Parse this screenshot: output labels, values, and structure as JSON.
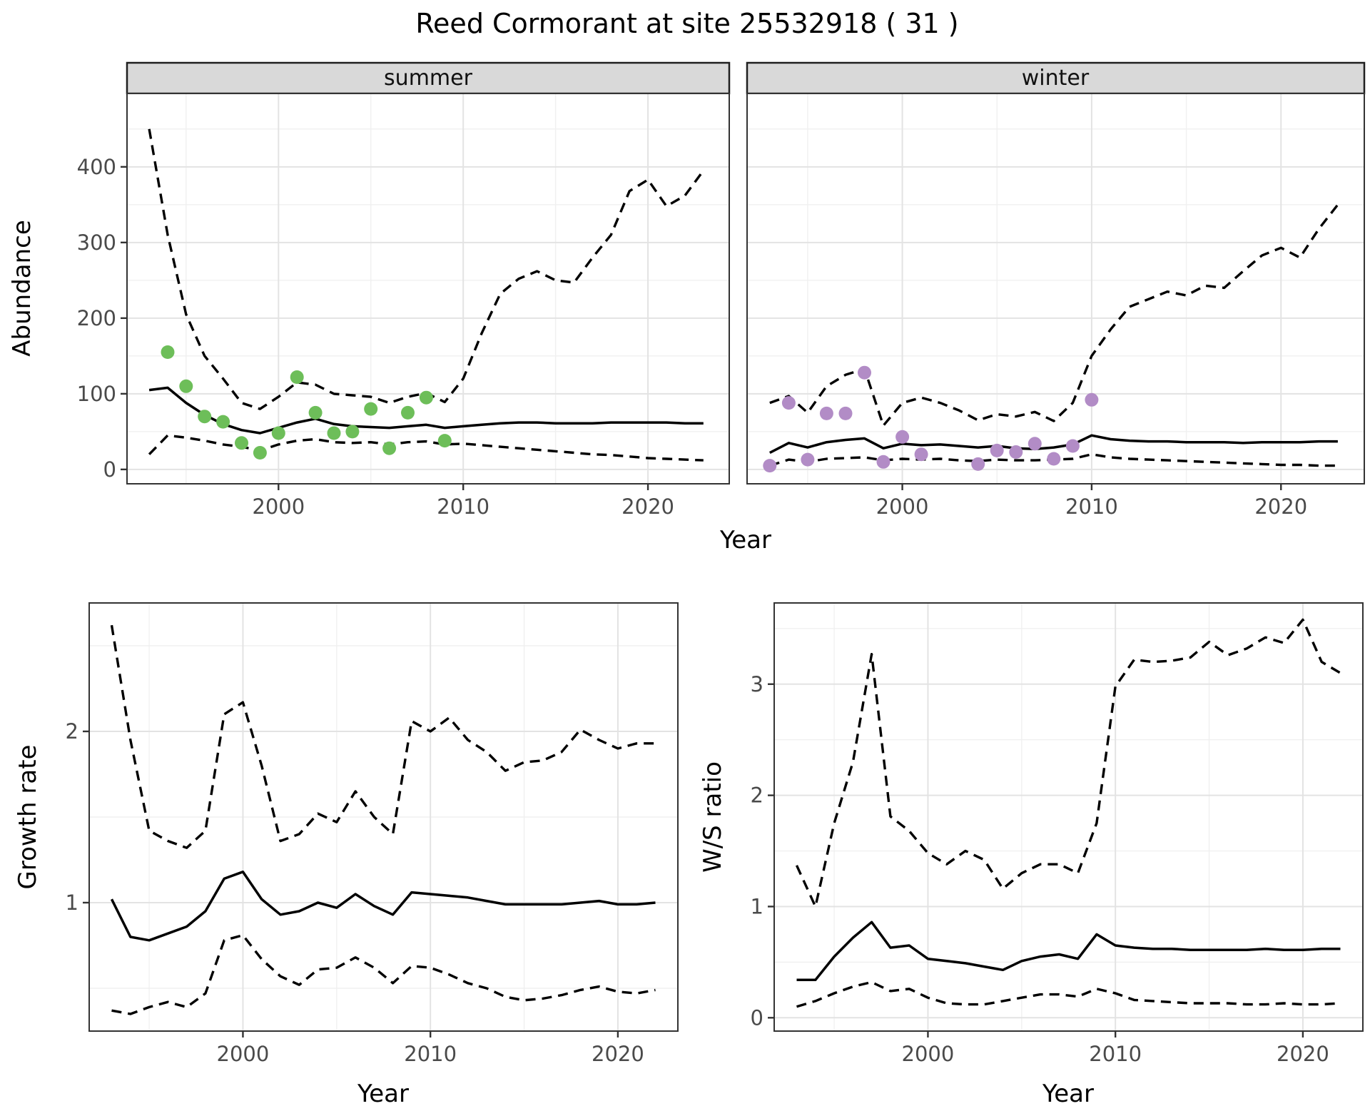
{
  "title": "Reed Cormorant at site 25532918 ( 31 )",
  "labels": {
    "top_xlabel": "Year"
  },
  "colors": {
    "summer_point": "#6dbe59",
    "winter_point": "#b28cc6",
    "line": "#000000",
    "strip_fill": "#d9d9d9",
    "grid_major": "#e3e3e3",
    "grid_minor": "#f0f0f0",
    "tick_text": "#4a4a4a",
    "panel_border": "#333333"
  },
  "chart_data": [
    {
      "type": "line",
      "facet": "summer",
      "xlabel": "Year",
      "ylabel": "Abundance",
      "xlim": [
        1991.8,
        2024.4
      ],
      "ylim": [
        -19,
        497
      ],
      "x_ticks": [
        2000,
        2010,
        2020
      ],
      "x_minor": [
        1995,
        2005,
        2015
      ],
      "y_ticks": [
        0,
        100,
        200,
        300,
        400
      ],
      "y_minor": [
        50,
        150,
        250,
        350,
        450
      ],
      "grid": true,
      "legend": "none",
      "years": [
        1993,
        1994,
        1995,
        1996,
        1997,
        1998,
        1999,
        2000,
        2001,
        2002,
        2003,
        2004,
        2005,
        2006,
        2007,
        2008,
        2009,
        2010,
        2011,
        2012,
        2013,
        2014,
        2015,
        2016,
        2017,
        2018,
        2019,
        2020,
        2021,
        2022,
        2023
      ],
      "series": [
        {
          "name": "median",
          "style": "solid",
          "values": [
            105,
            108,
            88,
            72,
            60,
            52,
            48,
            55,
            62,
            67,
            60,
            57,
            56,
            55,
            57,
            59,
            55,
            57,
            59,
            61,
            62,
            62,
            61,
            61,
            61,
            62,
            62,
            62,
            62,
            61,
            61
          ]
        },
        {
          "name": "upper_ci",
          "style": "dashed",
          "values": [
            450,
            310,
            205,
            150,
            120,
            88,
            80,
            96,
            115,
            112,
            100,
            98,
            96,
            88,
            96,
            101,
            89,
            120,
            180,
            232,
            252,
            262,
            250,
            247,
            280,
            310,
            368,
            383,
            348,
            362,
            395
          ]
        },
        {
          "name": "lower_ci",
          "style": "dashed",
          "values": [
            20,
            45,
            42,
            38,
            33,
            30,
            25,
            33,
            38,
            40,
            36,
            35,
            36,
            33,
            36,
            37,
            33,
            34,
            32,
            30,
            28,
            26,
            24,
            22,
            20,
            19,
            17,
            15,
            14,
            13,
            12
          ]
        }
      ],
      "observations": {
        "color_key": "summer_point",
        "points": [
          [
            1994,
            155
          ],
          [
            1995,
            110
          ],
          [
            1996,
            70
          ],
          [
            1997,
            63
          ],
          [
            1998,
            35
          ],
          [
            1999,
            22
          ],
          [
            2000,
            48
          ],
          [
            2001,
            122
          ],
          [
            2002,
            75
          ],
          [
            2003,
            48
          ],
          [
            2004,
            50
          ],
          [
            2005,
            80
          ],
          [
            2006,
            28
          ],
          [
            2007,
            75
          ],
          [
            2008,
            95
          ],
          [
            2009,
            38
          ]
        ]
      }
    },
    {
      "type": "line",
      "facet": "winter",
      "xlabel": "Year",
      "ylabel": "Abundance",
      "xlim": [
        1991.8,
        2024.4
      ],
      "ylim": [
        -19,
        497
      ],
      "x_ticks": [
        2000,
        2010,
        2020
      ],
      "x_minor": [
        1995,
        2005,
        2015
      ],
      "y_ticks": [
        0,
        100,
        200,
        300,
        400
      ],
      "y_minor": [
        50,
        150,
        250,
        350,
        450
      ],
      "grid": true,
      "legend": "none",
      "years": [
        1993,
        1994,
        1995,
        1996,
        1997,
        1998,
        1999,
        2000,
        2001,
        2002,
        2003,
        2004,
        2005,
        2006,
        2007,
        2008,
        2009,
        2010,
        2011,
        2012,
        2013,
        2014,
        2015,
        2016,
        2017,
        2018,
        2019,
        2020,
        2021,
        2022,
        2023
      ],
      "series": [
        {
          "name": "median",
          "style": "solid",
          "values": [
            22,
            35,
            29,
            36,
            39,
            41,
            28,
            34,
            32,
            33,
            31,
            29,
            31,
            28,
            27,
            29,
            33,
            45,
            40,
            38,
            37,
            37,
            36,
            36,
            36,
            35,
            36,
            36,
            36,
            37,
            37
          ]
        },
        {
          "name": "upper_ci",
          "style": "dashed",
          "values": [
            88,
            97,
            75,
            110,
            125,
            133,
            58,
            88,
            95,
            88,
            78,
            65,
            73,
            70,
            76,
            64,
            88,
            150,
            185,
            215,
            225,
            235,
            230,
            243,
            240,
            262,
            283,
            293,
            280,
            318,
            350
          ]
        },
        {
          "name": "lower_ci",
          "style": "dashed",
          "values": [
            5,
            13,
            10,
            14,
            15,
            16,
            12,
            14,
            13,
            14,
            12,
            11,
            13,
            12,
            12,
            13,
            14,
            20,
            16,
            14,
            13,
            12,
            11,
            10,
            9,
            8,
            7,
            6,
            6,
            5,
            5
          ]
        }
      ],
      "observations": {
        "color_key": "winter_point",
        "points": [
          [
            1993,
            5
          ],
          [
            1994,
            88
          ],
          [
            1995,
            13
          ],
          [
            1996,
            74
          ],
          [
            1997,
            74
          ],
          [
            1998,
            128
          ],
          [
            1999,
            10
          ],
          [
            2000,
            43
          ],
          [
            2001,
            20
          ],
          [
            2004,
            7
          ],
          [
            2005,
            25
          ],
          [
            2006,
            23
          ],
          [
            2007,
            34
          ],
          [
            2008,
            14
          ],
          [
            2009,
            31
          ],
          [
            2010,
            92
          ]
        ]
      }
    },
    {
      "type": "line",
      "facet": null,
      "xlabel": "Year",
      "ylabel": "Growth rate",
      "xlim": [
        1991.8,
        2023.2
      ],
      "ylim": [
        0.25,
        2.75
      ],
      "x_ticks": [
        2000,
        2010,
        2020
      ],
      "x_minor": [
        1995,
        2005,
        2015
      ],
      "y_ticks": [
        1,
        2
      ],
      "y_minor": [
        0.5,
        1.5,
        2.5
      ],
      "grid": true,
      "legend": "none",
      "years": [
        1993,
        1994,
        1995,
        1996,
        1997,
        1998,
        1999,
        2000,
        2001,
        2002,
        2003,
        2004,
        2005,
        2006,
        2007,
        2008,
        2009,
        2010,
        2011,
        2012,
        2013,
        2014,
        2015,
        2016,
        2017,
        2018,
        2019,
        2020,
        2021,
        2022
      ],
      "series": [
        {
          "name": "median",
          "style": "solid",
          "values": [
            1.02,
            0.8,
            0.78,
            0.82,
            0.86,
            0.95,
            1.14,
            1.18,
            1.02,
            0.93,
            0.95,
            1.0,
            0.97,
            1.05,
            0.98,
            0.93,
            1.06,
            1.05,
            1.04,
            1.03,
            1.01,
            0.99,
            0.99,
            0.99,
            0.99,
            1.0,
            1.01,
            0.99,
            0.99,
            1.0
          ]
        },
        {
          "name": "upper_ci",
          "style": "dashed",
          "values": [
            2.62,
            1.95,
            1.42,
            1.36,
            1.32,
            1.42,
            2.1,
            2.17,
            1.8,
            1.36,
            1.4,
            1.52,
            1.47,
            1.65,
            1.5,
            1.4,
            2.06,
            2.0,
            2.08,
            1.95,
            1.88,
            1.77,
            1.82,
            1.83,
            1.88,
            2.01,
            1.95,
            1.9,
            1.93,
            1.93
          ]
        },
        {
          "name": "lower_ci",
          "style": "dashed",
          "values": [
            0.37,
            0.35,
            0.39,
            0.42,
            0.39,
            0.47,
            0.78,
            0.81,
            0.67,
            0.57,
            0.52,
            0.61,
            0.62,
            0.68,
            0.62,
            0.53,
            0.63,
            0.62,
            0.58,
            0.53,
            0.5,
            0.45,
            0.43,
            0.44,
            0.46,
            0.49,
            0.51,
            0.48,
            0.47,
            0.49
          ]
        }
      ]
    },
    {
      "type": "line",
      "facet": null,
      "xlabel": "Year",
      "ylabel": "W/S ratio",
      "xlim": [
        1991.8,
        2023.2
      ],
      "ylim": [
        -0.12,
        3.73
      ],
      "x_ticks": [
        2000,
        2010,
        2020
      ],
      "x_minor": [
        1995,
        2005,
        2015
      ],
      "y_ticks": [
        0,
        1,
        2,
        3
      ],
      "y_minor": [
        0.5,
        1.5,
        2.5,
        3.5
      ],
      "grid": true,
      "legend": "none",
      "years": [
        1993,
        1994,
        1995,
        1996,
        1997,
        1998,
        1999,
        2000,
        2001,
        2002,
        2003,
        2004,
        2005,
        2006,
        2007,
        2008,
        2009,
        2010,
        2011,
        2012,
        2013,
        2014,
        2015,
        2016,
        2017,
        2018,
        2019,
        2020,
        2021,
        2022
      ],
      "series": [
        {
          "name": "median",
          "style": "solid",
          "values": [
            0.34,
            0.34,
            0.55,
            0.72,
            0.86,
            0.63,
            0.65,
            0.53,
            0.51,
            0.49,
            0.46,
            0.43,
            0.51,
            0.55,
            0.57,
            0.53,
            0.75,
            0.65,
            0.63,
            0.62,
            0.62,
            0.61,
            0.61,
            0.61,
            0.61,
            0.62,
            0.61,
            0.61,
            0.62,
            0.62
          ]
        },
        {
          "name": "upper_ci",
          "style": "dashed",
          "values": [
            1.37,
            1.0,
            1.75,
            2.3,
            3.27,
            1.81,
            1.68,
            1.48,
            1.38,
            1.5,
            1.42,
            1.16,
            1.3,
            1.38,
            1.38,
            1.3,
            1.75,
            2.98,
            3.22,
            3.2,
            3.21,
            3.24,
            3.38,
            3.26,
            3.32,
            3.42,
            3.37,
            3.58,
            3.2,
            3.1
          ]
        },
        {
          "name": "lower_ci",
          "style": "dashed",
          "values": [
            0.1,
            0.15,
            0.22,
            0.28,
            0.32,
            0.24,
            0.26,
            0.18,
            0.13,
            0.12,
            0.12,
            0.15,
            0.18,
            0.21,
            0.21,
            0.19,
            0.26,
            0.22,
            0.16,
            0.15,
            0.14,
            0.13,
            0.13,
            0.13,
            0.12,
            0.12,
            0.13,
            0.12,
            0.12,
            0.13
          ]
        }
      ]
    }
  ]
}
